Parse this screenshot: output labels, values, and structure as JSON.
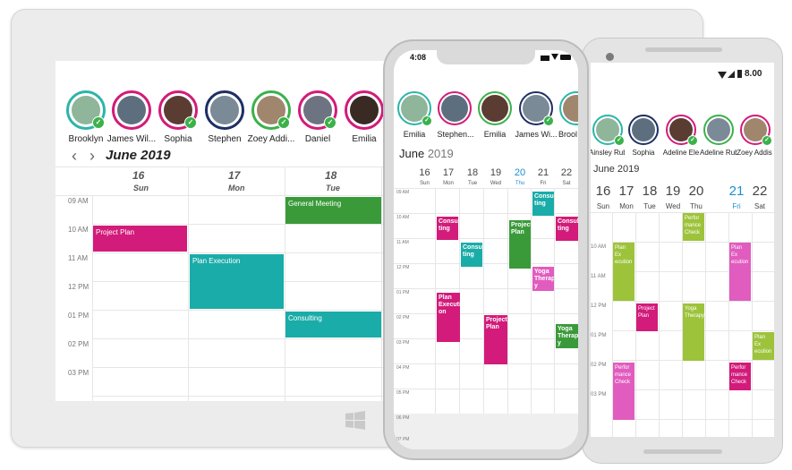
{
  "tablet": {
    "resources": [
      {
        "name": "Brooklyn",
        "ring": "#2cb5a9",
        "checked": true,
        "bg": "#8fb59a"
      },
      {
        "name": "James Wil...",
        "ring": "#d21b7a",
        "checked": false,
        "bg": "#5d6f7f"
      },
      {
        "name": "Sophia",
        "ring": "#d21b7a",
        "checked": true,
        "bg": "#5a3c32"
      },
      {
        "name": "Stephen",
        "ring": "#1d2f63",
        "checked": false,
        "bg": "#7a8a96"
      },
      {
        "name": "Zoey Addi...",
        "ring": "#3bb14a",
        "checked": true,
        "bg": "#a0866c"
      },
      {
        "name": "Daniel",
        "ring": "#d21b7a",
        "checked": true,
        "bg": "#6d7380"
      },
      {
        "name": "Emilia",
        "ring": "#d21b7a",
        "checked": false,
        "bg": "#3a2a24"
      }
    ],
    "prev_icon": "‹",
    "next_icon": "›",
    "month": "June 2019",
    "days": [
      {
        "num": "16",
        "name": "Sun"
      },
      {
        "num": "17",
        "name": "Mon"
      },
      {
        "num": "18",
        "name": "Tue"
      }
    ],
    "times": [
      "09 AM",
      "10 AM",
      "11 AM",
      "12 PM",
      "01 PM",
      "02 PM",
      "03 PM"
    ],
    "appointments": [
      {
        "title": "General Meeting",
        "color": "#3a9a3a"
      },
      {
        "title": "Project Plan",
        "color": "#d21b7a"
      },
      {
        "title": "Plan Execution",
        "color": "#1aaca8"
      },
      {
        "title": "Consulting",
        "color": "#1aaca8"
      }
    ]
  },
  "iphone": {
    "time": "4:08",
    "resources": [
      {
        "name": "Emilia",
        "ring": "#2cb5a9",
        "checked": true,
        "bg": "#8fb59a"
      },
      {
        "name": "Stephen...",
        "ring": "#d21b7a",
        "checked": false,
        "bg": "#5d6f7f"
      },
      {
        "name": "Emilia",
        "ring": "#3bb14a",
        "checked": false,
        "bg": "#5a3c32"
      },
      {
        "name": "James Wi...",
        "ring": "#1d2f63",
        "checked": true,
        "bg": "#7a8a96"
      },
      {
        "name": "Brool",
        "ring": "#2cb5a9",
        "checked": true,
        "bg": "#a0866c"
      }
    ],
    "month_name": "June",
    "month_year": "2019",
    "days": [
      {
        "num": "16",
        "name": "Sun",
        "today": false
      },
      {
        "num": "17",
        "name": "Mon",
        "today": false
      },
      {
        "num": "18",
        "name": "Tue",
        "today": false
      },
      {
        "num": "19",
        "name": "Wed",
        "today": false
      },
      {
        "num": "20",
        "name": "Thu",
        "today": true
      },
      {
        "num": "21",
        "name": "Fri",
        "today": false
      },
      {
        "num": "22",
        "name": "Sat",
        "today": false
      }
    ],
    "times": [
      "09 AM",
      "10 AM",
      "11 AM",
      "12 PM",
      "01 PM",
      "02 PM",
      "03 PM",
      "04 PM",
      "05 PM",
      "06 PM",
      "07 PM"
    ],
    "appointments": [
      {
        "title": "Consul ting",
        "color": "#d21b7a"
      },
      {
        "title": "Consul ting",
        "color": "#1aaca8"
      },
      {
        "title": "Consul ting",
        "color": "#1aaca8"
      },
      {
        "title": "Consul ting",
        "color": "#d21b7a"
      },
      {
        "title": "Project Plan",
        "color": "#3a9a3a"
      },
      {
        "title": "Yoga Therap y",
        "color": "#e15cbf"
      },
      {
        "title": "Plan Executi on",
        "color": "#d21b7a"
      },
      {
        "title": "Project Plan",
        "color": "#d21b7a"
      },
      {
        "title": "Yoga Therap y",
        "color": "#3a9a3a"
      }
    ]
  },
  "android": {
    "status_time": "8.00",
    "resources": [
      {
        "name": "Ainsley Rub",
        "ring": "#2cb5a9",
        "checked": true,
        "bg": "#8fb59a"
      },
      {
        "name": "Sophia",
        "ring": "#1d2f63",
        "checked": false,
        "bg": "#5d6f7f"
      },
      {
        "name": "Adeline Ele",
        "ring": "#d21b7a",
        "checked": true,
        "bg": "#5a3c32"
      },
      {
        "name": "Adeline Rub",
        "ring": "#3bb14a",
        "checked": false,
        "bg": "#7a8a96"
      },
      {
        "name": "Zoey Addis",
        "ring": "#d21b7a",
        "checked": true,
        "bg": "#a0866c"
      }
    ],
    "month": "June 2019",
    "days": [
      {
        "num": "16",
        "name": "Sun",
        "today": false
      },
      {
        "num": "17",
        "name": "Mon",
        "today": false
      },
      {
        "num": "18",
        "name": "Tue",
        "today": false
      },
      {
        "num": "19",
        "name": "Wed",
        "today": false
      },
      {
        "num": "20",
        "name": "Thu",
        "today": false
      },
      {
        "num": "21",
        "name": "Fri",
        "today": true
      },
      {
        "num": "22",
        "name": "Sat",
        "today": false
      }
    ],
    "times": [
      "10 AM",
      "11 AM",
      "12 PM",
      "01 PM",
      "02 PM",
      "03 PM"
    ],
    "appointments": [
      {
        "title": "Perfor mance Check",
        "color": "#9dc33b"
      },
      {
        "title": "Plan Ex ecution",
        "color": "#9dc33b"
      },
      {
        "title": "Plan Ex ecution",
        "color": "#e15cbf"
      },
      {
        "title": "Project Plan",
        "color": "#d21b7a"
      },
      {
        "title": "Yoga Therapy",
        "color": "#9dc33b"
      },
      {
        "title": "Plan Ex ecution",
        "color": "#9dc33b"
      },
      {
        "title": "Perfor mance Check",
        "color": "#e15cbf"
      },
      {
        "title": "Perfor mance Check",
        "color": "#d21b7a"
      }
    ]
  }
}
